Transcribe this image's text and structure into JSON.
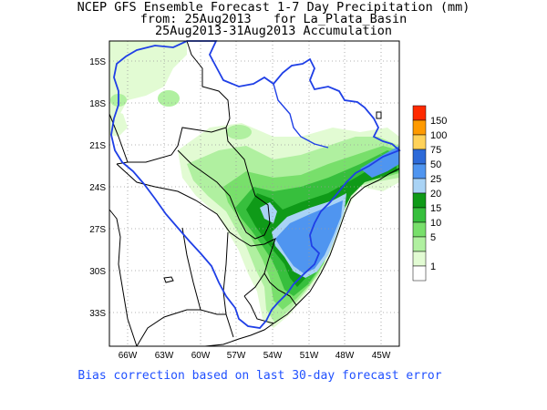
{
  "header": {
    "title_line1": "NCEP GFS Ensemble Forecast 1-7 Day Precipitation (mm)",
    "title_line2": "from: 25Aug2013   for La_Plata_Basin",
    "title_line3": "25Aug2013-31Aug2013 Accumulation"
  },
  "map": {
    "lat_labels": [
      "15S",
      "18S",
      "21S",
      "24S",
      "27S",
      "30S",
      "33S"
    ],
    "lon_labels": [
      "66W",
      "63W",
      "60W",
      "57W",
      "54W",
      "51W",
      "48W",
      "45W"
    ],
    "colors": {
      "c1": "#e2fbd3",
      "c5": "#b0f0a0",
      "c10": "#78df6b",
      "c15": "#37bf3d",
      "c20": "#0f9a18",
      "c25": "#a9d3f5",
      "c50": "#4f95f0",
      "c75": "#2d6ad8",
      "c100": "#ffd25a",
      "c150": "#ff9a00",
      "cmax": "#ff2a00",
      "basin_outline": "#1f3fe6",
      "borders": "#000000"
    }
  },
  "legend": {
    "labels": [
      "150",
      "100",
      "75",
      "50",
      "25",
      "20",
      "15",
      "10",
      "5",
      "1"
    ]
  },
  "footer": {
    "note": "Bias correction based on last 30-day forecast error"
  }
}
